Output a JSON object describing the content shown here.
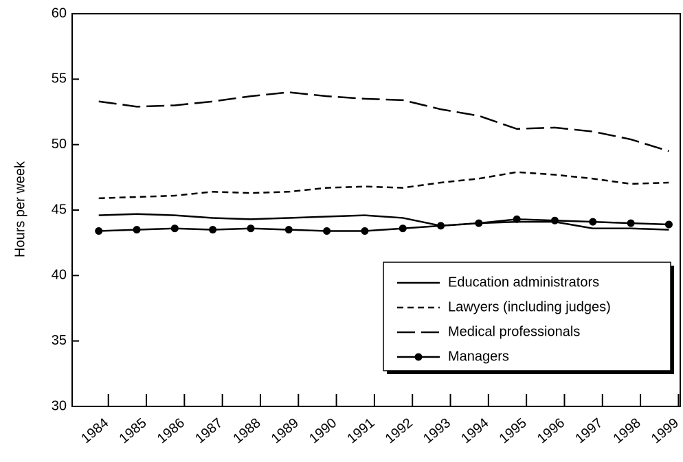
{
  "chart_data": {
    "type": "line",
    "y_label": "Hours per week",
    "x": [
      1984,
      1985,
      1986,
      1987,
      1988,
      1989,
      1990,
      1991,
      1992,
      1993,
      1994,
      1995,
      1996,
      1997,
      1998,
      1999
    ],
    "xlim": [
      1983.3,
      1999.3
    ],
    "xticks": [
      1984,
      1985,
      1986,
      1987,
      1988,
      1989,
      1990,
      1991,
      1992,
      1993,
      1994,
      1995,
      1996,
      1997,
      1998,
      1999
    ],
    "ylim": [
      30,
      60
    ],
    "yticks": [
      30,
      35,
      40,
      45,
      50,
      55,
      60
    ],
    "legend": "lower right",
    "series": [
      {
        "name": "Education administrators",
        "color": "#000000",
        "dash": "solid",
        "values": [
          44.6,
          44.7,
          44.6,
          44.4,
          44.3,
          44.4,
          44.5,
          44.6,
          44.4,
          43.8,
          44.0,
          44.1,
          44.1,
          43.6,
          43.6,
          43.5
        ]
      },
      {
        "name": "Lawyers (including judges)",
        "color": "#000000",
        "dash": "short",
        "values": [
          45.9,
          46.0,
          46.1,
          46.4,
          46.3,
          46.4,
          46.7,
          46.8,
          46.7,
          47.1,
          47.4,
          47.9,
          47.7,
          47.4,
          47.0,
          47.1
        ]
      },
      {
        "name": "Medical professionals",
        "color": "#000000",
        "dash": "long",
        "values": [
          53.3,
          52.9,
          53.0,
          53.3,
          53.7,
          54.0,
          53.7,
          53.5,
          53.4,
          52.7,
          52.2,
          51.2,
          51.3,
          51.0,
          50.4,
          49.5
        ]
      },
      {
        "name": "Managers",
        "color": "#000000",
        "dash": "solid",
        "marker": "circle",
        "values": [
          43.4,
          43.5,
          43.6,
          43.5,
          43.6,
          43.5,
          43.4,
          43.4,
          43.6,
          43.8,
          44.0,
          44.3,
          44.2,
          44.1,
          44.0,
          43.9
        ]
      }
    ]
  }
}
